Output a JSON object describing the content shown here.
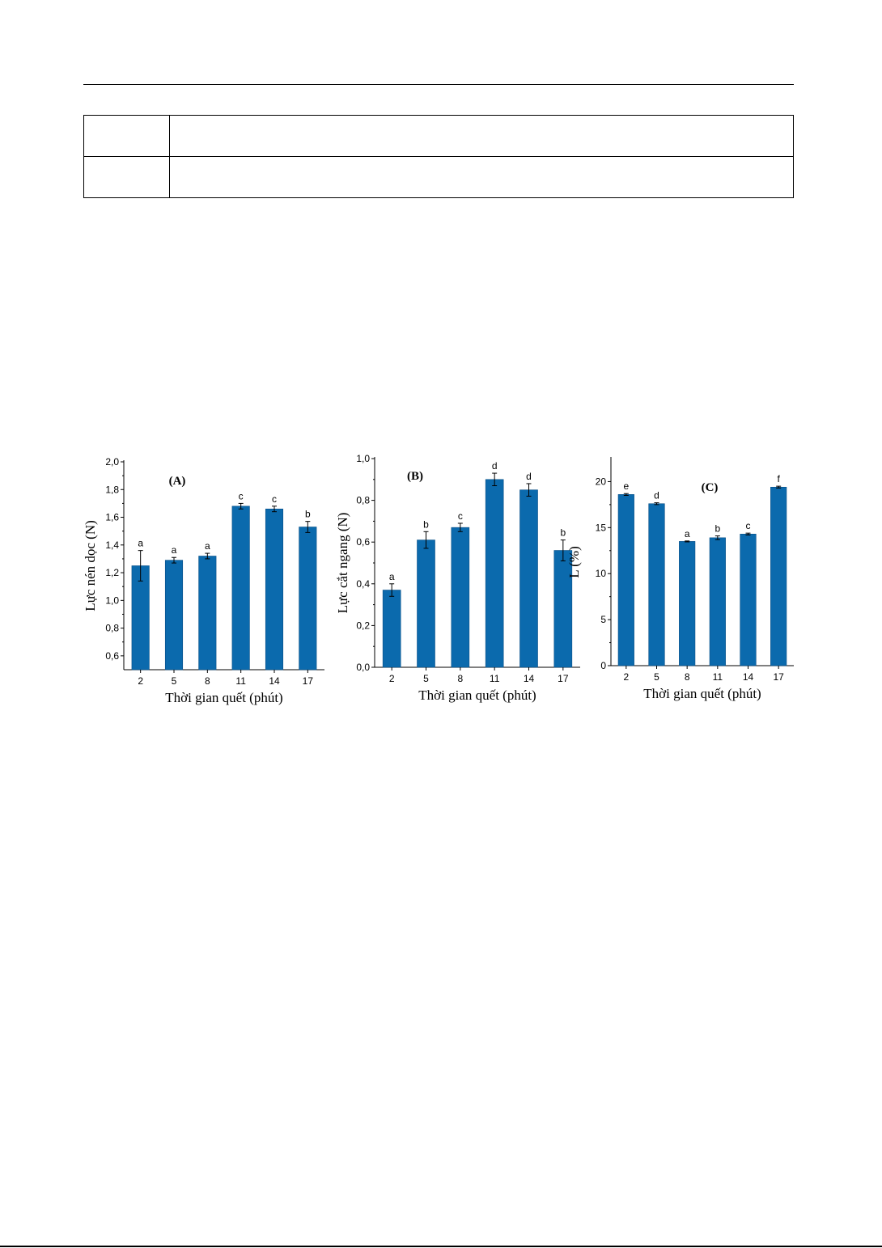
{
  "table": {
    "rows": [
      [
        "",
        ""
      ],
      [
        "",
        ""
      ]
    ]
  },
  "chart_data": [
    {
      "type": "bar",
      "panel_label": "(A)",
      "categories": [
        "2",
        "5",
        "8",
        "11",
        "14",
        "17"
      ],
      "values": [
        1.25,
        1.29,
        1.32,
        1.68,
        1.66,
        1.53
      ],
      "errors": [
        0.11,
        0.02,
        0.02,
        0.02,
        0.02,
        0.04
      ],
      "significance": [
        "a",
        "a",
        "a",
        "c",
        "c",
        "b"
      ],
      "ylim": [
        0.5,
        2.0
      ],
      "yticks": [
        0.6,
        0.8,
        1.0,
        1.2,
        1.4,
        1.6,
        1.8,
        2.0
      ],
      "ytick_labels": [
        "0,6",
        "0,8",
        "1,0",
        "1,2",
        "1,4",
        "1,6",
        "1,8",
        "2,0"
      ],
      "xlabel": "Thời gian quết (phút)",
      "ylabel": "Lực nén dọc (N)",
      "color": "#0b6aad",
      "grid": false
    },
    {
      "type": "bar",
      "panel_label": "(B)",
      "categories": [
        "2",
        "5",
        "8",
        "11",
        "14",
        "17"
      ],
      "values": [
        0.37,
        0.61,
        0.67,
        0.9,
        0.85,
        0.56
      ],
      "errors": [
        0.03,
        0.04,
        0.02,
        0.03,
        0.03,
        0.05
      ],
      "significance": [
        "a",
        "b",
        "c",
        "d",
        "d",
        "b"
      ],
      "ylim": [
        0.0,
        1.0
      ],
      "yticks": [
        0.0,
        0.2,
        0.4,
        0.6,
        0.8,
        1.0
      ],
      "ytick_labels": [
        "0,0",
        "0,2",
        "0,4",
        "0,6",
        "0,8",
        "1,0"
      ],
      "xlabel": "Thời gian quết (phút)",
      "ylabel": "Lực cắt ngang (N)",
      "color": "#0b6aad",
      "grid": false
    },
    {
      "type": "bar",
      "panel_label": "(C)",
      "categories": [
        "2",
        "5",
        "8",
        "11",
        "14",
        "17"
      ],
      "values": [
        18.6,
        17.6,
        13.5,
        13.9,
        14.3,
        19.4
      ],
      "errors": [
        0.1,
        0.1,
        0.05,
        0.2,
        0.1,
        0.1
      ],
      "significance": [
        "e",
        "d",
        "a",
        "b",
        "c",
        "f"
      ],
      "ylim": [
        0,
        22.5
      ],
      "yticks": [
        0,
        5,
        10,
        15,
        20
      ],
      "ytick_labels": [
        "0",
        "5",
        "10",
        "15",
        "20"
      ],
      "xlabel": "Thời gian quết (phút)",
      "ylabel": "L (%)",
      "color": "#0b6aad",
      "grid": false
    }
  ]
}
